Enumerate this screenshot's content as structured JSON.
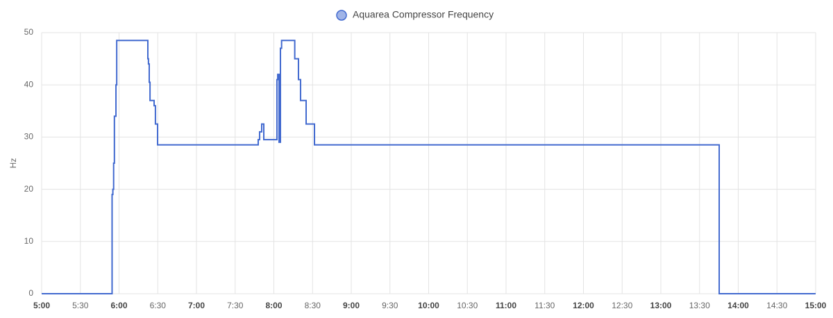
{
  "chart_data": {
    "type": "line",
    "step": true,
    "y_label": "Hz",
    "x": [
      5.0,
      5.906,
      5.91,
      5.92,
      5.93,
      5.94,
      5.96,
      5.97,
      6.372,
      6.38,
      6.39,
      6.4,
      6.453,
      6.47,
      6.498,
      6.587,
      7.798,
      7.816,
      7.843,
      7.87,
      7.94,
      8.04,
      8.05,
      8.067,
      8.085,
      8.1,
      8.27,
      8.318,
      8.345,
      8.417,
      8.525,
      13.754,
      15.0
    ],
    "series": [
      {
        "name": "Aquarea Compressor Frequency",
        "color": "#4169cf",
        "values": [
          0,
          0,
          19,
          20,
          25,
          34,
          40,
          48.5,
          45,
          44,
          40.5,
          37,
          36,
          32.5,
          28.5,
          28.5,
          29.5,
          31,
          32.5,
          29.5,
          29.5,
          41,
          42,
          29,
          47,
          48.5,
          45,
          41,
          37,
          32.5,
          28.5,
          0,
          0
        ]
      }
    ],
    "xlim": [
      5,
      15
    ],
    "xticks": [
      {
        "value": 5,
        "label": "5:00"
      },
      {
        "value": 5.5,
        "label": "5:30"
      },
      {
        "value": 6,
        "label": "6:00"
      },
      {
        "value": 6.5,
        "label": "6:30"
      },
      {
        "value": 7,
        "label": "7:00"
      },
      {
        "value": 7.5,
        "label": "7:30"
      },
      {
        "value": 8,
        "label": "8:00"
      },
      {
        "value": 8.5,
        "label": "8:30"
      },
      {
        "value": 9,
        "label": "9:00"
      },
      {
        "value": 9.5,
        "label": "9:30"
      },
      {
        "value": 10,
        "label": "10:00"
      },
      {
        "value": 10.5,
        "label": "10:30"
      },
      {
        "value": 11,
        "label": "11:00"
      },
      {
        "value": 11.5,
        "label": "11:30"
      },
      {
        "value": 12,
        "label": "12:00"
      },
      {
        "value": 12.5,
        "label": "12:30"
      },
      {
        "value": 13,
        "label": "13:00"
      },
      {
        "value": 13.5,
        "label": "13:30"
      },
      {
        "value": 14,
        "label": "14:00"
      },
      {
        "value": 14.5,
        "label": "14:30"
      },
      {
        "value": 15,
        "label": "15:00"
      }
    ],
    "ylim": [
      0,
      50
    ],
    "yticks": [
      0,
      10,
      20,
      30,
      40,
      50
    ],
    "grid": true
  }
}
